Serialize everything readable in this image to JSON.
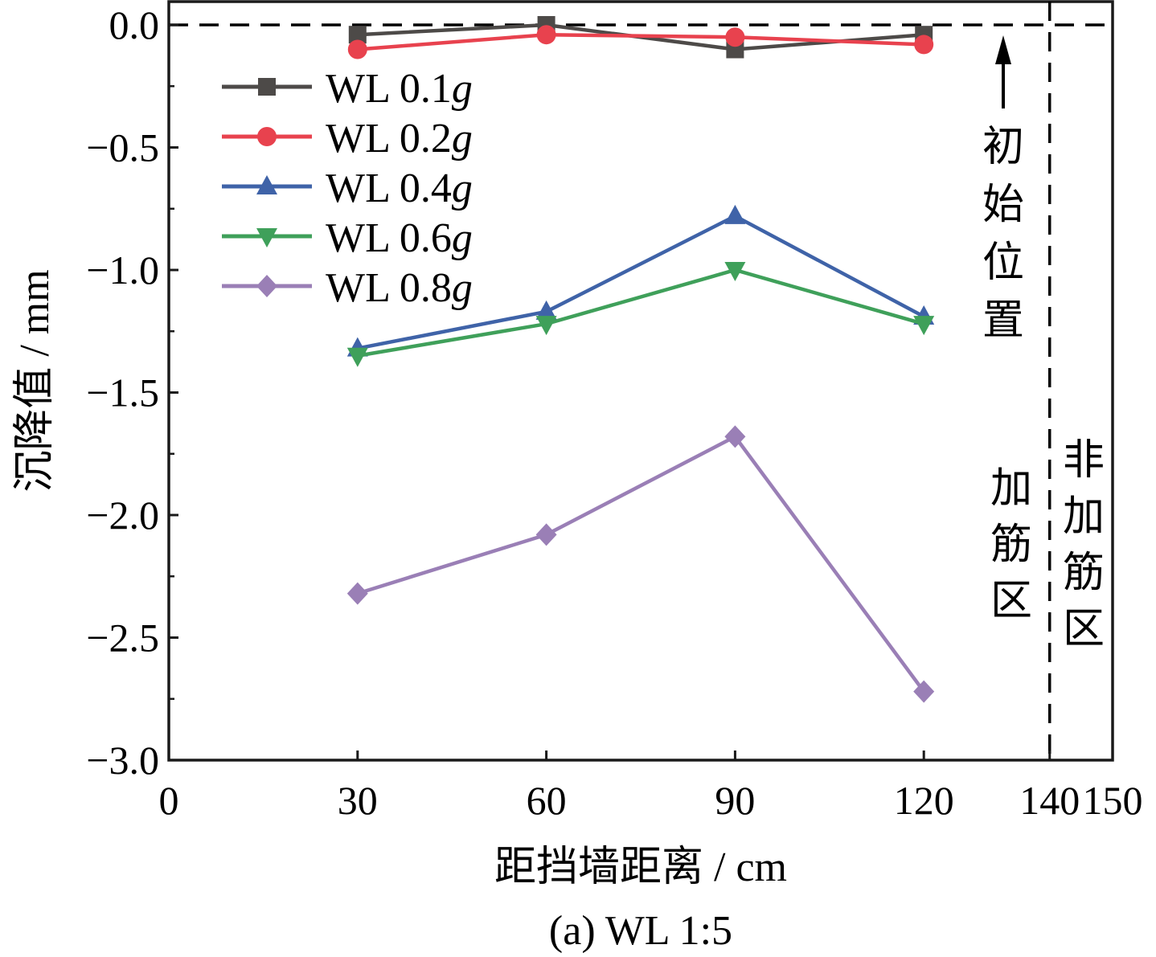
{
  "chart_data": {
    "type": "line",
    "caption": "(a) WL 1:5",
    "xlabel": "距挡墙距离 / cm",
    "ylabel": "沉降值 / mm",
    "xlim": [
      0,
      150
    ],
    "ylim": [
      -3.0,
      0.1
    ],
    "x_ticks": [
      0,
      30,
      60,
      90,
      120,
      140,
      150
    ],
    "x_tick_labels": [
      "0",
      "30",
      "60",
      "90",
      "120",
      "140",
      "150"
    ],
    "y_ticks": [
      0.0,
      -0.5,
      -1.0,
      -1.5,
      -2.0,
      -2.5,
      -3.0
    ],
    "y_tick_labels": [
      "0.0",
      "−0.5",
      "−1.0",
      "−1.5",
      "−2.0",
      "−2.5",
      "−3.0"
    ],
    "grid": false,
    "legend_position": "top-left",
    "x": [
      30,
      60,
      90,
      120
    ],
    "series": [
      {
        "name": "WL 0.1g",
        "label_base": "WL 0.1",
        "label_italic": "g",
        "color": "#4d4a48",
        "marker": "square",
        "values": [
          -0.04,
          0.0,
          -0.1,
          -0.04
        ]
      },
      {
        "name": "WL 0.2g",
        "label_base": "WL 0.2",
        "label_italic": "g",
        "color": "#e8424e",
        "marker": "circle",
        "values": [
          -0.1,
          -0.04,
          -0.05,
          -0.08
        ]
      },
      {
        "name": "WL 0.4g",
        "label_base": "WL 0.4",
        "label_italic": "g",
        "color": "#3f63a8",
        "marker": "triangle-up",
        "values": [
          -1.32,
          -1.17,
          -0.78,
          -1.19
        ]
      },
      {
        "name": "WL 0.6g",
        "label_base": "WL 0.6",
        "label_italic": "g",
        "color": "#3fa05a",
        "marker": "triangle-down",
        "values": [
          -1.35,
          -1.22,
          -1.0,
          -1.22
        ]
      },
      {
        "name": "WL 0.8g",
        "label_base": "WL 0.8",
        "label_italic": "g",
        "color": "#9a7fb6",
        "marker": "diamond",
        "values": [
          -2.32,
          -2.08,
          -1.68,
          -2.72
        ]
      }
    ],
    "reference_lines": [
      {
        "orientation": "horizontal",
        "value": 0.0,
        "style": "dashed"
      },
      {
        "orientation": "vertical",
        "value": 140,
        "style": "dashed"
      }
    ],
    "annotations": {
      "initial_position": "初始位置",
      "reinforced_zone": "加筋区",
      "unreinforced_zone": "非加筋区"
    }
  }
}
